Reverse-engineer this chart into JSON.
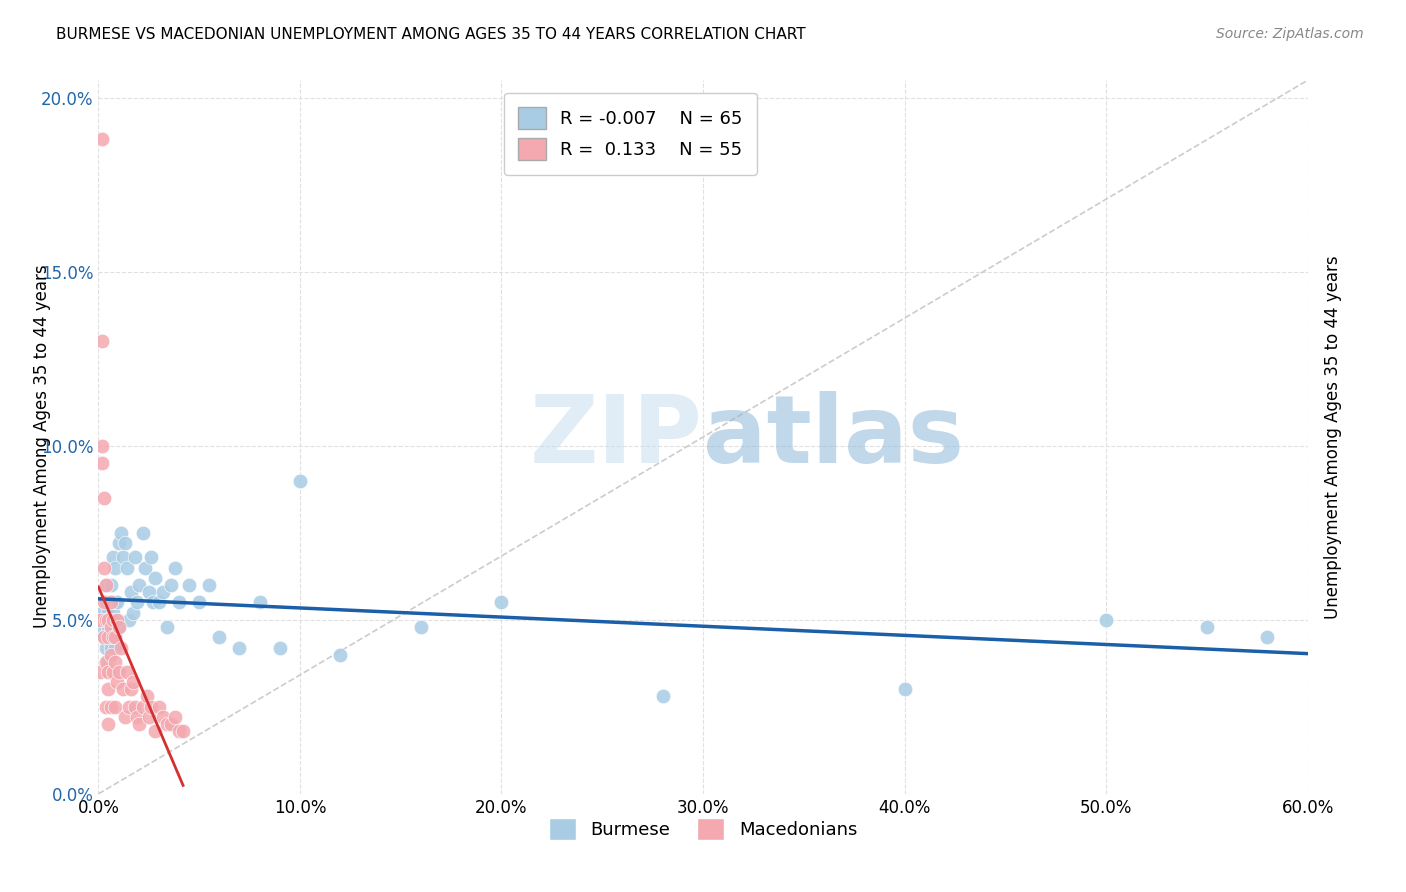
{
  "title": "BURMESE VS MACEDONIAN UNEMPLOYMENT AMONG AGES 35 TO 44 YEARS CORRELATION CHART",
  "source": "Source: ZipAtlas.com",
  "ylabel": "Unemployment Among Ages 35 to 44 years",
  "watermark_zip": "ZIP",
  "watermark_atlas": "atlas",
  "burmese_color": "#a8cce4",
  "macedonian_color": "#f4a8b0",
  "burmese_trend_color": "#1a5fa8",
  "macedonian_trend_color": "#d43030",
  "diagonal_color": "#cccccc",
  "R_burmese": -0.007,
  "N_burmese": 65,
  "R_macedonian": 0.133,
  "N_macedonian": 55,
  "xlim": [
    0.0,
    0.6
  ],
  "ylim": [
    0.0,
    0.205
  ],
  "xticks": [
    0.0,
    0.1,
    0.2,
    0.3,
    0.4,
    0.5,
    0.6
  ],
  "yticks": [
    0.0,
    0.05,
    0.1,
    0.15,
    0.2
  ],
  "burmese_x": [
    0.001,
    0.002,
    0.002,
    0.003,
    0.003,
    0.004,
    0.004,
    0.004,
    0.005,
    0.005,
    0.005,
    0.005,
    0.006,
    0.006,
    0.006,
    0.006,
    0.007,
    0.007,
    0.007,
    0.007,
    0.008,
    0.008,
    0.008,
    0.009,
    0.009,
    0.01,
    0.01,
    0.011,
    0.012,
    0.013,
    0.014,
    0.015,
    0.016,
    0.017,
    0.018,
    0.019,
    0.02,
    0.022,
    0.023,
    0.025,
    0.026,
    0.027,
    0.028,
    0.03,
    0.032,
    0.034,
    0.036,
    0.038,
    0.04,
    0.045,
    0.05,
    0.055,
    0.06,
    0.07,
    0.08,
    0.09,
    0.1,
    0.12,
    0.16,
    0.2,
    0.28,
    0.4,
    0.5,
    0.55,
    0.58
  ],
  "burmese_y": [
    0.05,
    0.048,
    0.052,
    0.05,
    0.045,
    0.055,
    0.042,
    0.06,
    0.048,
    0.052,
    0.038,
    0.05,
    0.055,
    0.045,
    0.06,
    0.042,
    0.048,
    0.052,
    0.068,
    0.05,
    0.055,
    0.042,
    0.065,
    0.05,
    0.055,
    0.072,
    0.048,
    0.075,
    0.068,
    0.072,
    0.065,
    0.05,
    0.058,
    0.052,
    0.068,
    0.055,
    0.06,
    0.075,
    0.065,
    0.058,
    0.068,
    0.055,
    0.062,
    0.055,
    0.058,
    0.048,
    0.06,
    0.065,
    0.055,
    0.06,
    0.055,
    0.06,
    0.045,
    0.042,
    0.055,
    0.042,
    0.09,
    0.04,
    0.048,
    0.055,
    0.028,
    0.03,
    0.05,
    0.048,
    0.045
  ],
  "macedonian_x": [
    0.001,
    0.001,
    0.002,
    0.002,
    0.002,
    0.002,
    0.003,
    0.003,
    0.003,
    0.003,
    0.004,
    0.004,
    0.004,
    0.004,
    0.005,
    0.005,
    0.005,
    0.005,
    0.005,
    0.006,
    0.006,
    0.006,
    0.006,
    0.007,
    0.007,
    0.007,
    0.008,
    0.008,
    0.008,
    0.009,
    0.009,
    0.01,
    0.01,
    0.011,
    0.012,
    0.013,
    0.014,
    0.015,
    0.016,
    0.017,
    0.018,
    0.019,
    0.02,
    0.022,
    0.024,
    0.025,
    0.026,
    0.028,
    0.03,
    0.032,
    0.034,
    0.036,
    0.038,
    0.04,
    0.042
  ],
  "macedonian_y": [
    0.05,
    0.035,
    0.188,
    0.13,
    0.1,
    0.095,
    0.085,
    0.065,
    0.055,
    0.045,
    0.06,
    0.05,
    0.038,
    0.025,
    0.05,
    0.045,
    0.035,
    0.03,
    0.02,
    0.055,
    0.048,
    0.04,
    0.025,
    0.05,
    0.045,
    0.035,
    0.045,
    0.038,
    0.025,
    0.05,
    0.032,
    0.048,
    0.035,
    0.042,
    0.03,
    0.022,
    0.035,
    0.025,
    0.03,
    0.032,
    0.025,
    0.022,
    0.02,
    0.025,
    0.028,
    0.022,
    0.025,
    0.018,
    0.025,
    0.022,
    0.02,
    0.02,
    0.022,
    0.018,
    0.018
  ]
}
